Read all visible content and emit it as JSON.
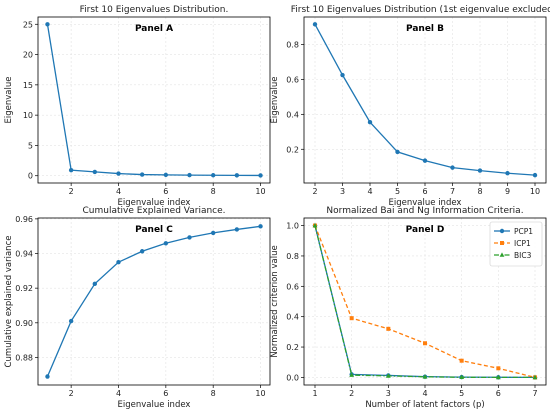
{
  "chart_data": [
    {
      "id": "A",
      "type": "line",
      "title": "First 10 Eigenvalues Distribution.",
      "panel_label": "Panel A",
      "xlabel": "Eigenvalue index",
      "ylabel": "Eigenvalue",
      "xlim": [
        0.6,
        10.4
      ],
      "ylim": [
        -1.2,
        26.2
      ],
      "xticks": [
        2,
        4,
        6,
        8,
        10
      ],
      "yticks": [
        0,
        5,
        10,
        15,
        20,
        25
      ],
      "grid": true,
      "series": [
        {
          "color": "#1f77b4",
          "x": [
            1,
            2,
            3,
            4,
            5,
            6,
            7,
            8,
            9,
            10
          ],
          "y": [
            25.0,
            0.92,
            0.63,
            0.36,
            0.19,
            0.14,
            0.1,
            0.08,
            0.06,
            0.05
          ]
        }
      ]
    },
    {
      "id": "B",
      "type": "line",
      "title": "First 10 Eigenvalues Distribution (1st eigenvalue excluded).",
      "panel_label": "Panel B",
      "xlabel": "Eigenvalue index",
      "ylabel": "Eigenvalue",
      "xlim": [
        1.6,
        10.4
      ],
      "ylim": [
        0.007,
        0.957
      ],
      "xticks": [
        2,
        3,
        4,
        5,
        6,
        7,
        8,
        9,
        10
      ],
      "yticks": [
        0.2,
        0.4,
        0.6,
        0.8
      ],
      "grid": true,
      "series": [
        {
          "color": "#1f77b4",
          "x": [
            2,
            3,
            4,
            5,
            6,
            7,
            8,
            9,
            10
          ],
          "y": [
            0.915,
            0.625,
            0.355,
            0.185,
            0.135,
            0.095,
            0.078,
            0.063,
            0.052
          ]
        }
      ]
    },
    {
      "id": "C",
      "type": "line",
      "title": "Cumulative Explained Variance.",
      "panel_label": "Panel C",
      "xlabel": "Eigenvalue index",
      "ylabel": "Cumulative explained variance",
      "xlim": [
        0.6,
        10.4
      ],
      "ylim": [
        0.8641,
        0.9605
      ],
      "xticks": [
        2,
        4,
        6,
        8,
        10
      ],
      "yticks": [
        0.88,
        0.9,
        0.92,
        0.94,
        0.96
      ],
      "grid": true,
      "series": [
        {
          "color": "#1f77b4",
          "x": [
            1,
            2,
            3,
            4,
            5,
            6,
            7,
            8,
            9,
            10
          ],
          "y": [
            0.869,
            0.901,
            0.9225,
            0.935,
            0.9413,
            0.9459,
            0.9493,
            0.9519,
            0.9539,
            0.9557
          ]
        }
      ]
    },
    {
      "id": "D",
      "type": "line",
      "title": "Normalized Bai and Ng Information Criteria.",
      "panel_label": "Panel D",
      "xlabel": "Number of latent factors (p)",
      "ylabel": "Normalized criterion value",
      "xlim": [
        0.7,
        7.3
      ],
      "ylim": [
        -0.05,
        1.05
      ],
      "xticks": [
        1,
        2,
        3,
        4,
        5,
        6,
        7
      ],
      "yticks": [
        0.0,
        0.2,
        0.4,
        0.6,
        0.8,
        1.0
      ],
      "grid": true,
      "legend": "top-right",
      "series": [
        {
          "name": "PCP1",
          "color": "#1f77b4",
          "marker": "circle",
          "dash": "solid",
          "x": [
            1,
            2,
            3,
            4,
            5,
            6,
            7
          ],
          "y": [
            1.0,
            0.02,
            0.013,
            0.005,
            0.002,
            0.001,
            0.0
          ]
        },
        {
          "name": "ICP1",
          "color": "#ff7f0e",
          "marker": "square",
          "dash": "dashed",
          "x": [
            1,
            2,
            3,
            4,
            5,
            6,
            7
          ],
          "y": [
            1.0,
            0.39,
            0.32,
            0.225,
            0.11,
            0.06,
            0.0
          ]
        },
        {
          "name": "BIC3",
          "color": "#2ca02c",
          "marker": "triangle",
          "dash": "dashdot",
          "x": [
            1,
            2,
            3,
            4,
            5,
            6,
            7
          ],
          "y": [
            1.0,
            0.015,
            0.01,
            0.004,
            0.001,
            0.0,
            0.0
          ]
        }
      ]
    }
  ]
}
